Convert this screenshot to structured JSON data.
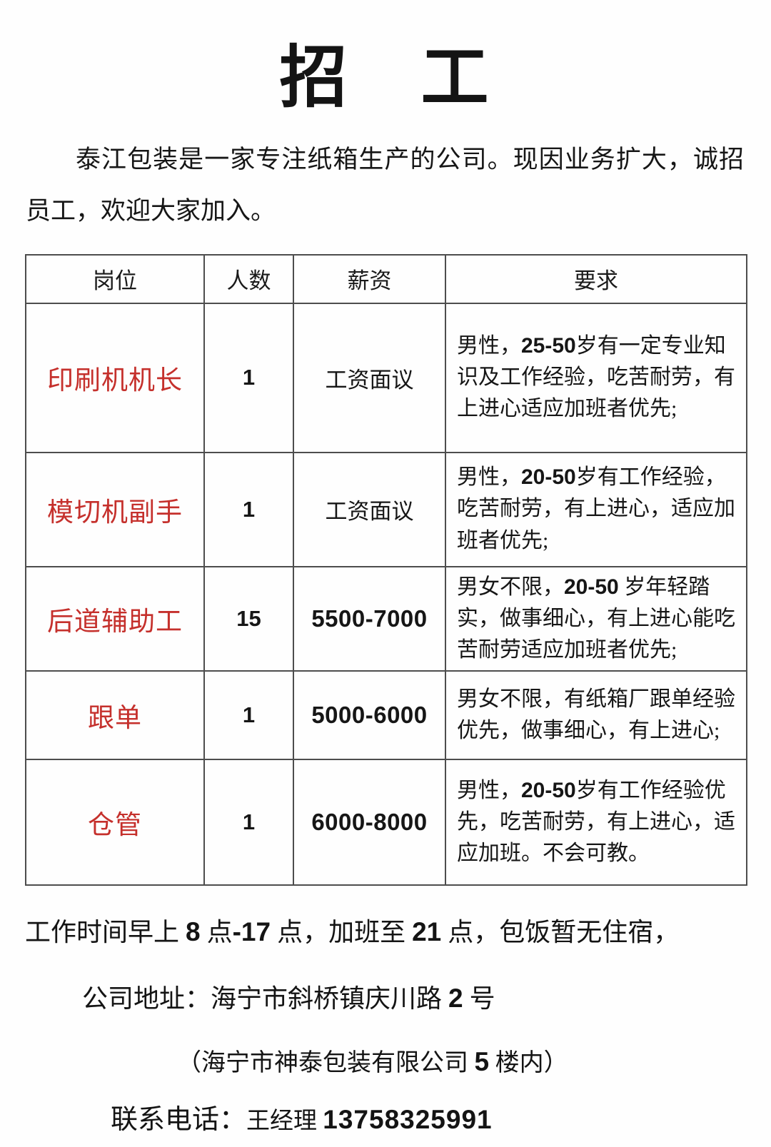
{
  "title": "招　工",
  "intro": "泰江包装是一家专注纸箱生产的公司。现因业务扩大，诚招员工，欢迎大家加入。",
  "colors": {
    "accent_red": "#c5302c",
    "border_gray": "#4d4d4d",
    "text_black": "#161616"
  },
  "table": {
    "headers": [
      "岗位",
      "人数",
      "薪资",
      "要求"
    ],
    "rows": [
      {
        "position": "印刷机机长",
        "count": "1",
        "salary": [
          {
            "t": "工资面议",
            "b": false
          }
        ],
        "req": [
          {
            "t": "男性，",
            "b": false
          },
          {
            "t": "25-50",
            "b": true
          },
          {
            "t": "岁有一定专业知识及工作经验，吃苦耐劳，有上进心适应加班者优先;",
            "b": false
          }
        ]
      },
      {
        "position": "模切机副手",
        "count": "1",
        "salary": [
          {
            "t": "工资面议",
            "b": false
          }
        ],
        "req": [
          {
            "t": "男性，",
            "b": false
          },
          {
            "t": "20-50",
            "b": true
          },
          {
            "t": "岁有工作经验，吃苦耐劳，有上进心，适应加班者优先;",
            "b": false
          }
        ]
      },
      {
        "position": "后道辅助工",
        "count": "15",
        "salary": [
          {
            "t": "5500-7000",
            "b": true
          }
        ],
        "req": [
          {
            "t": "男女不限，",
            "b": false
          },
          {
            "t": "20-50",
            "b": true
          },
          {
            "t": " 岁年轻踏实，做事细心，有上进心能吃苦耐劳适应加班者优先;",
            "b": false
          }
        ]
      },
      {
        "position": "跟单",
        "count": "1",
        "salary": [
          {
            "t": "5000-6000",
            "b": true
          }
        ],
        "req": [
          {
            "t": "男女不限，有纸箱厂跟单经验优先，做事细心，有上进心;",
            "b": false
          }
        ]
      },
      {
        "position": "仓管",
        "count": "1",
        "salary": [
          {
            "t": "6000-8000",
            "b": true
          }
        ],
        "req": [
          {
            "t": "男性，",
            "b": false
          },
          {
            "t": "20-50",
            "b": true
          },
          {
            "t": "岁有工作经验优先，吃苦耐劳，有上进心，适应加班。不会可教。",
            "b": false
          }
        ]
      }
    ]
  },
  "footer": {
    "work_time": [
      {
        "t": "工作时间早上 ",
        "b": false
      },
      {
        "t": "8",
        "b": true
      },
      {
        "t": " 点",
        "b": false
      },
      {
        "t": "-17",
        "b": true
      },
      {
        "t": " 点，加班至 ",
        "b": false
      },
      {
        "t": "21",
        "b": true
      },
      {
        "t": " 点，包饭暂无住宿，",
        "b": false
      }
    ],
    "address": [
      {
        "t": "公司地址：海宁市斜桥镇庆川路 ",
        "b": false
      },
      {
        "t": "2",
        "b": true
      },
      {
        "t": " 号",
        "b": false
      }
    ],
    "address_note": [
      {
        "t": "（海宁市神泰包装有限公司 ",
        "b": false
      },
      {
        "t": "5",
        "b": true
      },
      {
        "t": " 楼内）",
        "b": false
      }
    ],
    "contact": [
      {
        "t": "联系电话：",
        "b": false
      },
      {
        "t": "王经理 ",
        "b": false,
        "cls": "seg-mgr"
      },
      {
        "t": "13758325991",
        "b": true,
        "cls": "seg-phone"
      }
    ]
  }
}
